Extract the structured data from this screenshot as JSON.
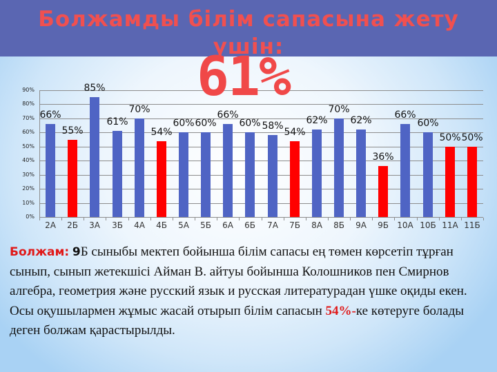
{
  "slide": {
    "title": "Болжамды білім сапасына жету үшін:",
    "target_value": "61%",
    "colors": {
      "header_bg": "#5a66b2",
      "title": "#f05050",
      "bar_normal": "#4f64c4",
      "bar_highlight": "#ff0000"
    }
  },
  "chart_data": {
    "type": "bar",
    "title": "",
    "xlabel": "",
    "ylabel": "",
    "ylim": [
      0,
      90
    ],
    "yticks": [
      "0%",
      "10%",
      "20%",
      "30%",
      "40%",
      "50%",
      "60%",
      "70%",
      "80%",
      "90%"
    ],
    "grid": true,
    "legend": null,
    "categories": [
      "2А",
      "2Б",
      "3А",
      "3Б",
      "4А",
      "4Б",
      "5А",
      "5Б",
      "6А",
      "6Б",
      "7А",
      "7Б",
      "8А",
      "8Б",
      "9А",
      "9Б",
      "10А",
      "10Б",
      "11А",
      "11Б"
    ],
    "values": [
      66,
      55,
      85,
      61,
      70,
      54,
      60,
      60,
      66,
      60,
      58,
      54,
      62,
      70,
      62,
      36,
      66,
      60,
      50,
      50
    ],
    "labels": [
      "66%",
      "55%",
      "85%",
      "61%",
      "70%",
      "54%",
      "60%",
      "60%",
      "66%",
      "60%",
      "58%",
      "54%",
      "62%",
      "70%",
      "62%",
      "36%",
      "66%",
      "60%",
      "50%",
      "50%"
    ],
    "highlighted": [
      false,
      true,
      false,
      false,
      false,
      true,
      false,
      false,
      false,
      false,
      false,
      true,
      false,
      false,
      false,
      true,
      false,
      false,
      true,
      true
    ]
  },
  "text": {
    "lead": "Болжам:",
    "lead_num": "9",
    "part1": "Б сыныбы мектеп бойынша білім сапасы ең төмен көрсетіп тұрған сынып, сынып жетекшісі Айман В. айтуы бойынша Колошников пен Смирнов алгебра, геометрия және русский язык и русская литературадан үшке оқиды екен. Осы оқушылармен жұмыс жасай отырып білім сапасын ",
    "highlight": "54%-",
    "part2": "ке көтеруге болады деген болжам қарастырылды."
  }
}
